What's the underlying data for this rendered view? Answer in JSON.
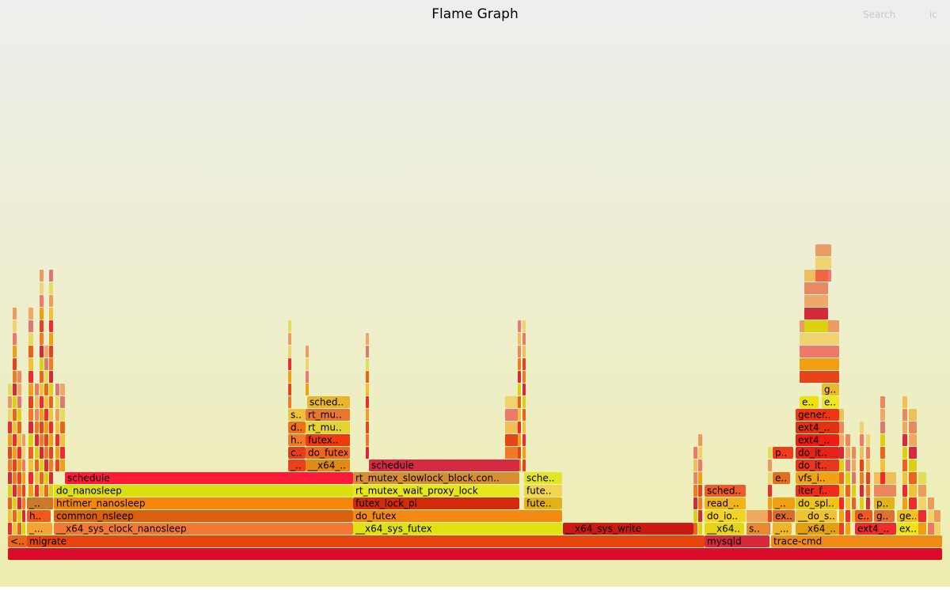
{
  "header": {
    "title": "Flame Graph",
    "search": "Search",
    "ignore_case": "ic"
  },
  "frames": [
    {
      "label": "<..",
      "color": "#e8661c"
    },
    {
      "label": "migrate",
      "color": "#e8440e"
    },
    {
      "label": "mysqld",
      "color": "#d42a3a"
    },
    {
      "label": "trace-cmd",
      "color": "#ef8a17"
    },
    {
      "label": "_...",
      "color": "#f4a430"
    },
    {
      "label": "__x64_sys_clock_nanosleep",
      "color": "#f27836"
    },
    {
      "label": "__x64_sys_futex",
      "color": "#e2e212"
    },
    {
      "label": "__x64_sys_write",
      "color": "#cc1a12"
    },
    {
      "label": "__x64..",
      "color": "#e8d414"
    },
    {
      "label": "s..",
      "color": "#ea8a2e"
    },
    {
      "label": "_...",
      "color": "#f0b428"
    },
    {
      "label": "__x64_..",
      "color": "#e4a010"
    },
    {
      "label": "ext4_..",
      "color": "#ee2c2c"
    },
    {
      "label": "ex..",
      "color": "#f0e418"
    },
    {
      "label": "h..",
      "color": "#ef5a1a"
    },
    {
      "label": "common_nsleep",
      "color": "#d8600e"
    },
    {
      "label": "do_futex",
      "color": "#f28a14"
    },
    {
      "label": "do_io..",
      "color": "#f4d420"
    },
    {
      "label": "ex..",
      "color": "#dc6a28"
    },
    {
      "label": "__do_s..",
      "color": "#f2c234"
    },
    {
      "label": "e..",
      "color": "#f05a22"
    },
    {
      "label": "g..",
      "color": "#de7232"
    },
    {
      "label": "ge..",
      "color": "#f2c020"
    },
    {
      "label": "_..",
      "color": "#ca7a2a"
    },
    {
      "label": "hrtimer_nanosleep",
      "color": "#f4860a"
    },
    {
      "label": "futex_lock_pi",
      "color": "#d22a0a"
    },
    {
      "label": "fute..",
      "color": "#e4b218"
    },
    {
      "label": "read_..",
      "color": "#f2b418"
    },
    {
      "label": "_..",
      "color": "#f0a010"
    },
    {
      "label": "do_spl..",
      "color": "#f2c416"
    },
    {
      "label": "p..",
      "color": "#e2b418"
    },
    {
      "label": "do_nanosleep",
      "color": "#dce012"
    },
    {
      "label": "rt_mutex_wait_proxy_lock",
      "color": "#e8e61a"
    },
    {
      "label": "fute..",
      "color": "#f0d452"
    },
    {
      "label": "sched..",
      "color": "#ee5a2e"
    },
    {
      "label": "iter_f..",
      "color": "#f02c1a"
    },
    {
      "label": "schedule",
      "color": "#ff1a3a"
    },
    {
      "label": "rt_mutex_slowlock_block.con..",
      "color": "#d68e30"
    },
    {
      "label": "sche..",
      "color": "#e2e628"
    },
    {
      "label": "e..",
      "color": "#e26e1e"
    },
    {
      "label": "vfs_i..",
      "color": "#f0a212"
    },
    {
      "label": "schedule",
      "color": "#d42a42"
    },
    {
      "label": "_..",
      "color": "#e8441c"
    },
    {
      "label": "__x64_..",
      "color": "#e08c14"
    },
    {
      "label": "do_it..",
      "color": "#e8361c"
    },
    {
      "label": "c..",
      "color": "#e0401c"
    },
    {
      "label": "do_futex",
      "color": "#f0661c"
    },
    {
      "label": "p..",
      "color": "#f03c1a"
    },
    {
      "label": "do_it..",
      "color": "#e8221a"
    },
    {
      "label": "h..",
      "color": "#f27a24"
    },
    {
      "label": "futex..",
      "color": "#ee3a10"
    },
    {
      "label": "ext4_..",
      "color": "#ee1c12"
    },
    {
      "label": "d..",
      "color": "#f0701a"
    },
    {
      "label": "rt_mu..",
      "color": "#e4d432"
    },
    {
      "label": "ext4_..",
      "color": "#e43210"
    },
    {
      "label": "s..",
      "color": "#eec23a"
    },
    {
      "label": "rt_mu..",
      "color": "#e8762e"
    },
    {
      "label": "gener..",
      "color": "#f03414"
    },
    {
      "label": "sched..",
      "color": "#e8b62c"
    },
    {
      "label": "e..",
      "color": "#eee20a"
    },
    {
      "label": "e..",
      "color": "#f0e61a"
    },
    {
      "label": "g..",
      "color": "#e8ba2a"
    }
  ]
}
